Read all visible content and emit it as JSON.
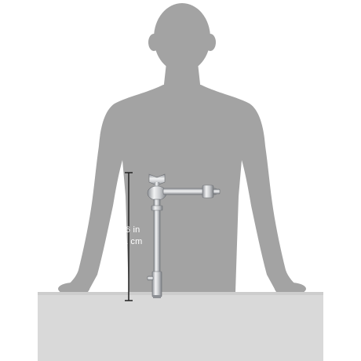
{
  "dimension": {
    "imperial": "16 in",
    "metric": "41 cm"
  },
  "colors": {
    "silhouette": "#a3a3a3",
    "table": "#d9d9d9",
    "table_top": "#cdcdcd",
    "measure_line": "#222222",
    "label_text": "#ffffff",
    "product_metal": "#c8cacd"
  },
  "objects": {
    "silhouette": "person-silhouette",
    "table": "table-surface",
    "product": "chrome-arm-clamp",
    "ruler": "height-measure-bar"
  }
}
